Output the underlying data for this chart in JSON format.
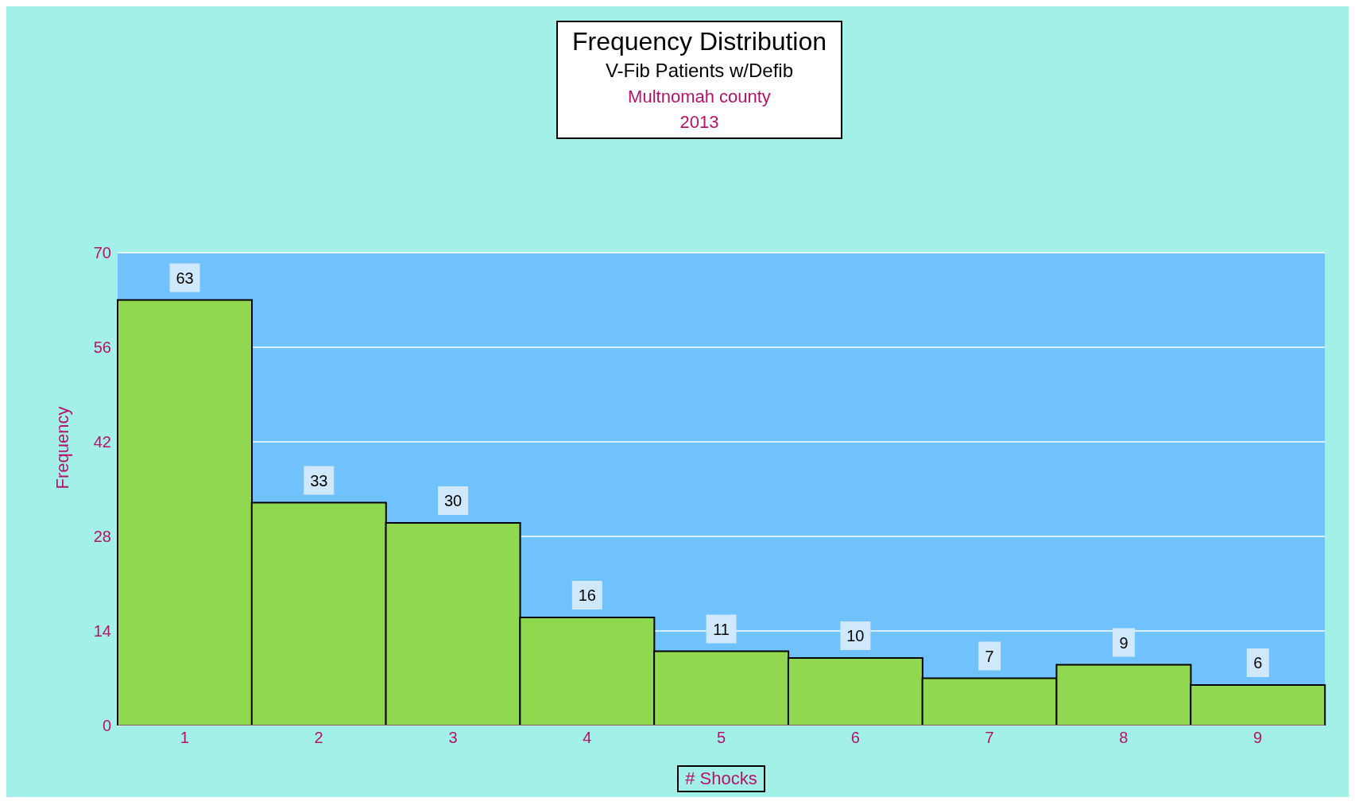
{
  "chart_data": {
    "type": "bar",
    "title": "Frequency Distribution",
    "subtitle": "V-Fib Patients w/Defib",
    "annotations": [
      "Multnomah county",
      "2013"
    ],
    "xlabel": "# Shocks",
    "ylabel": "Frequency",
    "categories": [
      "1",
      "2",
      "3",
      "4",
      "5",
      "6",
      "7",
      "8",
      "9"
    ],
    "values": [
      63,
      33,
      30,
      16,
      11,
      10,
      7,
      9,
      6
    ],
    "color": "#8fd84f",
    "ylim": [
      0,
      70
    ],
    "yticks": [
      0,
      14,
      28,
      42,
      56,
      70
    ],
    "grid": "y",
    "data_labels": true
  }
}
